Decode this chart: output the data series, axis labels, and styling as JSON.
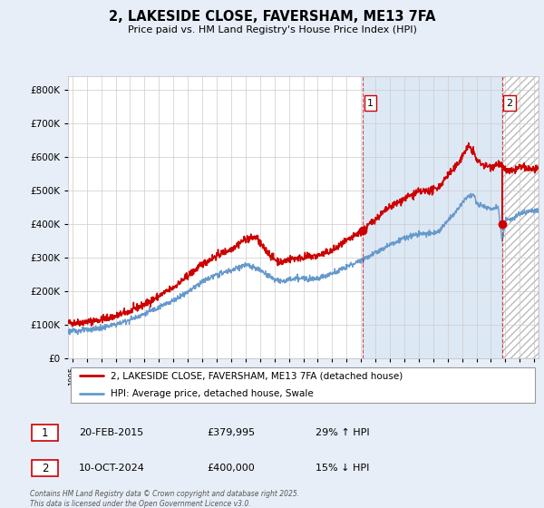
{
  "title": "2, LAKESIDE CLOSE, FAVERSHAM, ME13 7FA",
  "subtitle": "Price paid vs. HM Land Registry's House Price Index (HPI)",
  "footnote": "Contains HM Land Registry data © Crown copyright and database right 2025.\nThis data is licensed under the Open Government Licence v3.0.",
  "legend_line1": "2, LAKESIDE CLOSE, FAVERSHAM, ME13 7FA (detached house)",
  "legend_line2": "HPI: Average price, detached house, Swale",
  "sale1_date": "20-FEB-2015",
  "sale1_price": "£379,995",
  "sale1_hpi": "29% ↑ HPI",
  "sale2_date": "10-OCT-2024",
  "sale2_price": "£400,000",
  "sale2_hpi": "15% ↓ HPI",
  "red_color": "#cc0000",
  "blue_color": "#6699cc",
  "background_color": "#e8eef8",
  "highlight_color": "#dde8f5",
  "plot_background": "#ffffff",
  "grid_color": "#cccccc",
  "ylim": [
    0,
    840000
  ],
  "xlim_start": 1994.7,
  "xlim_end": 2027.3,
  "sale1_x": 2015.13,
  "sale1_y": 379995,
  "sale2_x": 2024.78,
  "sale2_y": 400000,
  "hatch_start": 2024.78,
  "hatch_end": 2027.3,
  "highlight_start": 2015.13,
  "highlight_end": 2024.78
}
